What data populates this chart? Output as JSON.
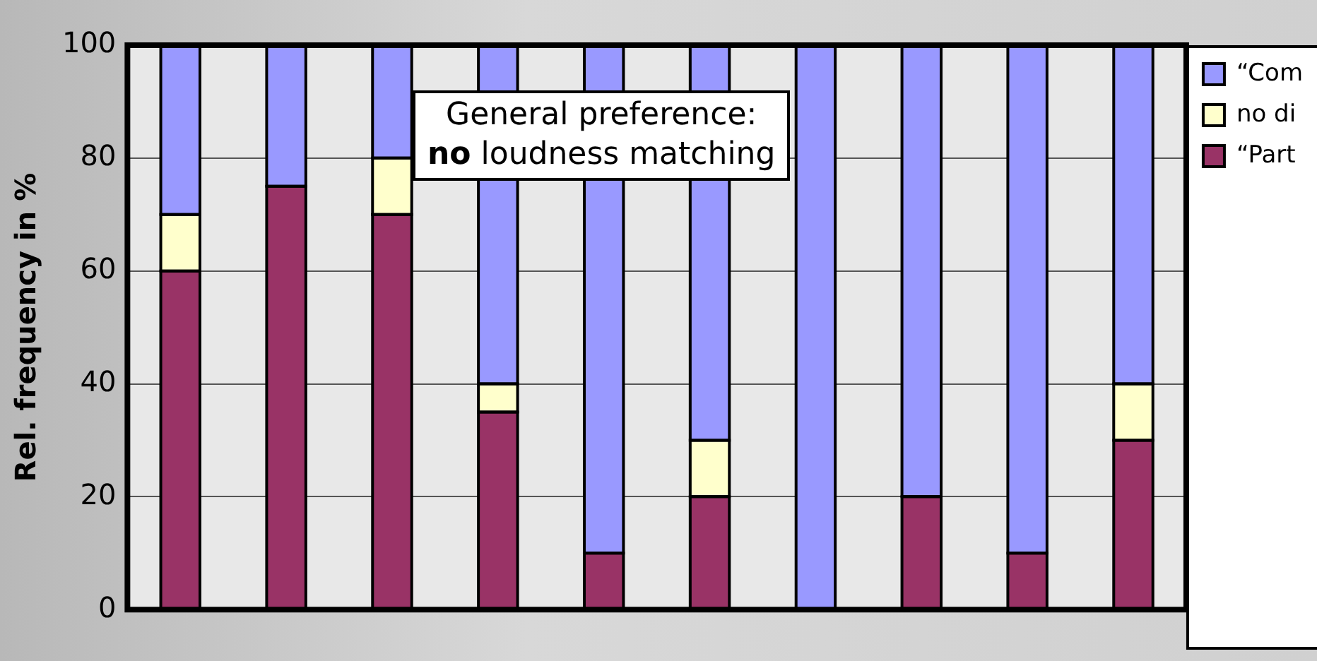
{
  "chart_data": {
    "type": "bar",
    "stacked": true,
    "ylabel": "Rel. frequency in %",
    "categories": [
      null,
      null,
      null,
      null,
      null,
      null,
      null,
      null,
      null,
      null
    ],
    "series": [
      {
        "name": "“Part",
        "color": "#993366",
        "values": [
          60,
          75,
          70,
          35,
          10,
          20,
          0,
          20,
          10,
          30
        ]
      },
      {
        "name": "no di",
        "color": "#ffffcc",
        "values": [
          10,
          0,
          10,
          5,
          0,
          10,
          0,
          0,
          0,
          10
        ]
      },
      {
        "name": "“Com",
        "color": "#9999ff",
        "values": [
          30,
          25,
          20,
          60,
          90,
          70,
          100,
          80,
          90,
          60
        ]
      }
    ],
    "ylim": [
      0,
      100
    ],
    "yticks": [
      0,
      20,
      40,
      60,
      80,
      100
    ],
    "grid": "y",
    "legend": "top right",
    "annotations": [
      "General preference:\nno loudness matching"
    ]
  }
}
